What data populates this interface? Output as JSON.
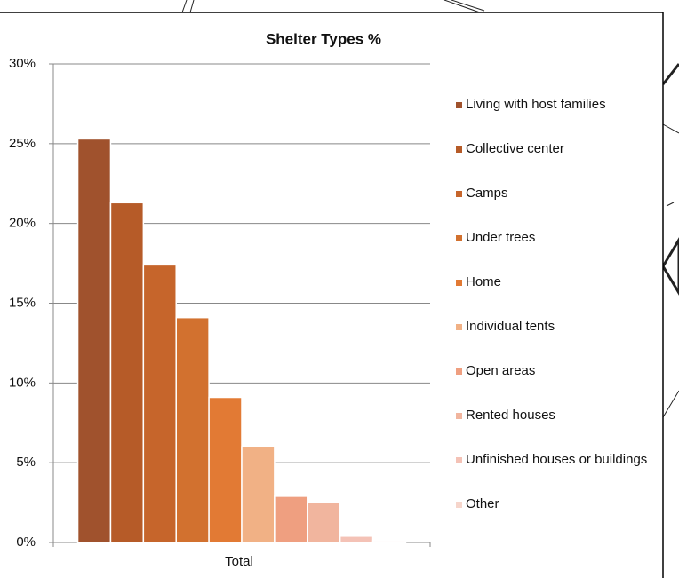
{
  "chart_data": {
    "type": "bar",
    "title": "Shelter Types %",
    "categories": [
      "Total"
    ],
    "series": [
      {
        "name": "Living with host families",
        "color": "#a0522d",
        "values": [
          25.3
        ]
      },
      {
        "name": "Collective center",
        "color": "#b65b28",
        "values": [
          21.3
        ]
      },
      {
        "name": "Camps",
        "color": "#c6652b",
        "values": [
          17.4
        ]
      },
      {
        "name": "Under trees",
        "color": "#d2712f",
        "values": [
          14.1
        ]
      },
      {
        "name": "Home",
        "color": "#e27a34",
        "values": [
          9.1
        ]
      },
      {
        "name": "Individual tents",
        "color": "#f1b185",
        "values": [
          6.0
        ]
      },
      {
        "name": "Open areas",
        "color": "#ef9f80",
        "values": [
          2.9
        ]
      },
      {
        "name": "Rented houses",
        "color": "#f1b59e",
        "values": [
          2.5
        ]
      },
      {
        "name": "Unfinished houses or buildings",
        "color": "#f4c2b6",
        "values": [
          0.4
        ]
      },
      {
        "name": "Other",
        "color": "#f6d5cb",
        "values": [
          0.1
        ]
      }
    ],
    "ylim": [
      0,
      30
    ],
    "yticks": [
      {
        "value": 0,
        "label": "0%"
      },
      {
        "value": 5,
        "label": "5%"
      },
      {
        "value": 10,
        "label": "10%"
      },
      {
        "value": 15,
        "label": "15%"
      },
      {
        "value": 20,
        "label": "20%"
      },
      {
        "value": 25,
        "label": "25%"
      },
      {
        "value": 30,
        "label": "30%"
      }
    ],
    "grid": true,
    "legend": "right"
  }
}
